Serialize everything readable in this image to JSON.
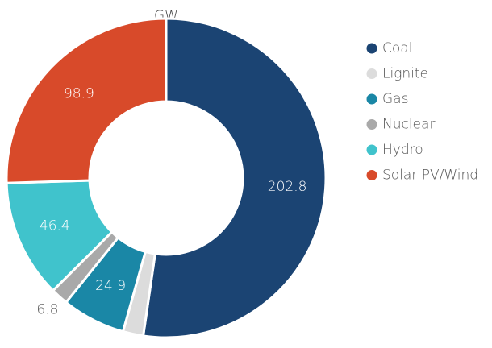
{
  "chart_data": {
    "type": "donut",
    "title": "GW",
    "categories": [
      "Coal",
      "Lignite",
      "Gas",
      "Nuclear",
      "Hydro",
      "Solar PV/Wind"
    ],
    "values": [
      202.8,
      8,
      24.9,
      6.8,
      46.4,
      98.9
    ],
    "value_labels": [
      "202.8",
      null,
      "24.9",
      "6.8",
      "46.4",
      "98.9"
    ],
    "colors": [
      "#1b4473",
      "#dcdcdc",
      "#1a87a6",
      "#a9a9a9",
      "#40c3cc",
      "#d84a2a"
    ],
    "legend": "right"
  }
}
